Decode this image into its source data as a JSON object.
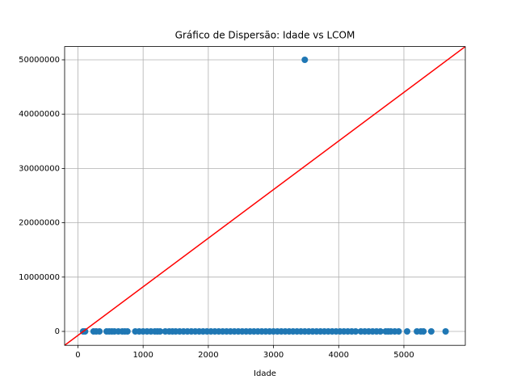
{
  "chart_data": {
    "type": "scatter",
    "title": "Gráfico de Dispersão: Idade vs LCOM",
    "xlabel": "Idade",
    "xlim": [
      -204,
      5942
    ],
    "ylim": [
      -2560000,
      52440000
    ],
    "xticks": [
      0,
      1000,
      2000,
      3000,
      4000,
      5000
    ],
    "yticks": [
      0,
      10000000,
      20000000,
      30000000,
      40000000,
      50000000
    ],
    "grid": true,
    "series": [
      {
        "type": "scatter",
        "color": "#1f77b4",
        "x": [
          3480,
          80,
          110,
          240,
          280,
          330,
          440,
          480,
          520,
          560,
          620,
          680,
          720,
          760,
          880,
          940,
          1000,
          1060,
          1120,
          1180,
          1220,
          1260,
          1340,
          1400,
          1450,
          1500,
          1560,
          1620,
          1680,
          1740,
          1800,
          1860,
          1920,
          1980,
          2040,
          2100,
          2160,
          2220,
          2280,
          2340,
          2400,
          2460,
          2520,
          2580,
          2640,
          2700,
          2760,
          2820,
          2880,
          2940,
          3000,
          3060,
          3120,
          3180,
          3240,
          3300,
          3360,
          3420,
          3480,
          3540,
          3600,
          3660,
          3720,
          3780,
          3840,
          3900,
          3960,
          4020,
          4080,
          4140,
          4200,
          4260,
          4340,
          4400,
          4460,
          4520,
          4580,
          4640,
          4720,
          4760,
          4800,
          4860,
          4920,
          5050,
          5200,
          5260,
          5300,
          5420,
          5640
        ],
        "values": [
          50000000,
          0,
          0,
          0,
          0,
          0,
          0,
          0,
          0,
          0,
          0,
          0,
          0,
          0,
          0,
          0,
          0,
          0,
          0,
          0,
          0,
          0,
          0,
          0,
          0,
          0,
          0,
          0,
          0,
          0,
          0,
          0,
          0,
          0,
          0,
          0,
          0,
          0,
          0,
          0,
          0,
          0,
          0,
          0,
          0,
          0,
          0,
          0,
          0,
          0,
          0,
          0,
          0,
          0,
          0,
          0,
          0,
          0,
          0,
          0,
          0,
          0,
          0,
          0,
          0,
          0,
          0,
          0,
          0,
          0,
          0,
          0,
          0,
          0,
          0,
          0,
          0,
          0,
          0,
          0,
          0,
          0,
          0,
          0,
          0,
          0,
          0,
          0,
          0
        ]
      },
      {
        "type": "line",
        "color": "#ff0000",
        "x": [
          -204,
          5942
        ],
        "values": [
          -2560000,
          52440000
        ]
      }
    ]
  }
}
